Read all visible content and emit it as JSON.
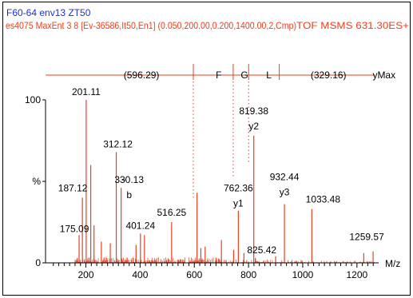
{
  "header": {
    "line1": "F60-64 env13 ZT50",
    "line2_left": "es4075  MaxEnt 3  8 [Ev-36586,It50,En1] (0.050,200.00,0.200,1400.00,2,Cmp)",
    "line2_right": "TOF MSMS 631.30ES+"
  },
  "sequence_bar": {
    "items": [
      {
        "text": "(596.29)",
        "x": 405,
        "kind": "gap"
      },
      {
        "text": "F",
        "x": 690,
        "kind": "residue"
      },
      {
        "text": "G",
        "x": 785,
        "kind": "residue"
      },
      {
        "text": "L",
        "x": 875,
        "kind": "residue"
      },
      {
        "text": "(329.16)",
        "x": 1095,
        "kind": "gap"
      },
      {
        "text": "yMax",
        "x": 1300,
        "kind": "end"
      }
    ],
    "dividers": [
      596.29,
      743.36,
      800.38,
      913.44
    ],
    "dotted_lines": [
      {
        "x": 596.29,
        "y": 40
      },
      {
        "x": 743.36,
        "y": 52
      },
      {
        "x": 800.38,
        "y": 62
      }
    ],
    "color": "#e8401f"
  },
  "chart_data": {
    "type": "bar",
    "xlabel": "M/z",
    "ylabel": "%",
    "xlim": [
      60,
      1280
    ],
    "ylim": [
      0,
      100
    ],
    "xticks": [
      200,
      400,
      600,
      800,
      1000,
      1200
    ],
    "yticks": [
      0,
      100
    ],
    "ytick_labels": [
      {
        "text": "0",
        "y": 0
      },
      {
        "text": "%",
        "y": 50
      },
      {
        "text": "100",
        "y": 100
      }
    ],
    "bar_color": "#e8401f",
    "peaks": [
      {
        "x": 175.09,
        "y": 17,
        "label": "175.09"
      },
      {
        "x": 187.12,
        "y": 40,
        "label": "187.12"
      },
      {
        "x": 201.11,
        "y": 100,
        "label": "201.11"
      },
      {
        "x": 218,
        "y": 60
      },
      {
        "x": 230,
        "y": 23
      },
      {
        "x": 257,
        "y": 13
      },
      {
        "x": 290,
        "y": 12
      },
      {
        "x": 312.12,
        "y": 68,
        "label": "312.12"
      },
      {
        "x": 330.13,
        "y": 46,
        "label": "330.13",
        "ion": "b"
      },
      {
        "x": 385,
        "y": 11
      },
      {
        "x": 401.24,
        "y": 18,
        "label": "401.24"
      },
      {
        "x": 416,
        "y": 17
      },
      {
        "x": 516.25,
        "y": 25,
        "label": "516.25"
      },
      {
        "x": 610,
        "y": 43
      },
      {
        "x": 624,
        "y": 9
      },
      {
        "x": 640,
        "y": 10
      },
      {
        "x": 700,
        "y": 14
      },
      {
        "x": 745,
        "y": 8
      },
      {
        "x": 762.36,
        "y": 32,
        "label": "762.36",
        "ion": "y1"
      },
      {
        "x": 783,
        "y": 6
      },
      {
        "x": 819.38,
        "y": 78,
        "label": "819.38",
        "ion": "y2"
      },
      {
        "x": 825.42,
        "y": 3,
        "label": "825.42"
      },
      {
        "x": 900,
        "y": 4
      },
      {
        "x": 932.44,
        "y": 36,
        "label": "932.44",
        "ion": "y3"
      },
      {
        "x": 1033.48,
        "y": 33,
        "label": "1033.48"
      },
      {
        "x": 1225,
        "y": 6
      },
      {
        "x": 1259.57,
        "y": 7,
        "label": "1259.57"
      }
    ]
  }
}
